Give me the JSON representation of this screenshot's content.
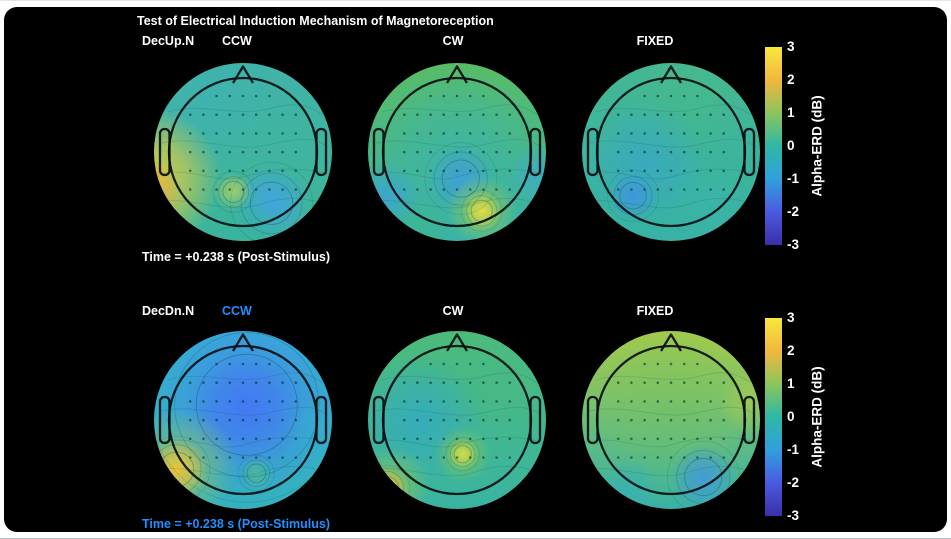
{
  "figure": {
    "title": "Test of Electrical Induction Mechanism of Magnetoreception",
    "colorbar": {
      "label": "Alpha-ERD (dB)",
      "min": -3,
      "max": 3,
      "ticks": [
        "3",
        "2",
        "1",
        "0",
        "-1",
        "-2",
        "-3"
      ],
      "gradient": [
        "#f9e73e",
        "#f2b73d",
        "#8cc45c",
        "#2eb8a6",
        "#31a0dc",
        "#4a5be0",
        "#3b2fa6"
      ]
    },
    "accent_blue": "#1e90ff",
    "rows": [
      {
        "row_label": "DecUp.N",
        "row_label_color": "#ffffff",
        "time_label": "Time = +0.238 s (Post-Stimulus)",
        "time_color": "#ffffff",
        "panels": [
          {
            "condition": "CCW",
            "condition_color": "#ffffff",
            "field": {
              "base_top": "#41b3a8",
              "base_bottom": "#3eb598",
              "blobs": [
                {
                  "x": 30,
                  "y": 22,
                  "r": 30,
                  "c": "#3db2b6",
                  "o": 0.55
                },
                {
                  "x": 1,
                  "y": 64,
                  "r": 30,
                  "c": "#e9cf3b",
                  "o": 0.95
                },
                {
                  "x": -3,
                  "y": 72,
                  "r": 16,
                  "c": "#eda43c",
                  "o": 0.9
                },
                {
                  "x": 65,
                  "y": 77,
                  "r": 16,
                  "c": "#41a2ea",
                  "o": 0.9,
                  "ring": 1
                },
                {
                  "x": 45,
                  "y": 71,
                  "r": 8,
                  "c": "#b9d45e",
                  "o": 0.85,
                  "ring": 1
                },
                {
                  "x": 50,
                  "y": 95,
                  "r": 22,
                  "c": "#35b2a2",
                  "o": 0.6
                }
              ]
            }
          },
          {
            "condition": "CW",
            "condition_color": "#ffffff",
            "field": {
              "base_top": "#5abd62",
              "base_bottom": "#37b2ae",
              "blobs": [
                {
                  "x": 50,
                  "y": 47,
                  "r": 36,
                  "c": "#36b2be",
                  "o": 0.5
                },
                {
                  "x": 52,
                  "y": 64,
                  "r": 14,
                  "c": "#3f9be0",
                  "o": 0.8,
                  "ring": 1
                },
                {
                  "x": 63,
                  "y": 81,
                  "r": 15,
                  "c": "#8fca58",
                  "o": 0.85
                },
                {
                  "x": 63,
                  "y": 81,
                  "r": 8,
                  "c": "#e3dc46",
                  "o": 0.95,
                  "ring": 1
                },
                {
                  "x": 12,
                  "y": 74,
                  "r": 15,
                  "c": "#3aa2d8",
                  "o": 0.8
                },
                {
                  "x": 93,
                  "y": 62,
                  "r": 13,
                  "c": "#3da6de",
                  "o": 0.6
                },
                {
                  "x": 30,
                  "y": 97,
                  "r": 20,
                  "c": "#42b87e",
                  "o": 0.5
                }
              ]
            }
          },
          {
            "condition": "FIXED",
            "condition_color": "#ffffff",
            "field": {
              "base_top": "#43b794",
              "base_bottom": "#37b2a4",
              "blobs": [
                {
                  "x": 60,
                  "y": 18,
                  "r": 28,
                  "c": "#49ba86",
                  "o": 0.55
                },
                {
                  "x": 36,
                  "y": 56,
                  "r": 26,
                  "c": "#38a6ca",
                  "o": 0.7
                },
                {
                  "x": 30,
                  "y": 73,
                  "r": 10,
                  "c": "#3f92e2",
                  "o": 0.85,
                  "ring": 1
                },
                {
                  "x": 70,
                  "y": 80,
                  "r": 16,
                  "c": "#3cb4ac",
                  "o": 0.6
                },
                {
                  "x": 5,
                  "y": 35,
                  "r": 16,
                  "c": "#40b69e",
                  "o": 0.5
                }
              ]
            }
          }
        ]
      },
      {
        "row_label": "DecDn.N",
        "row_label_color": "#ffffff",
        "time_label": "Time = +0.238 s (Post-Stimulus)",
        "time_color": "#1e90ff",
        "panels": [
          {
            "condition": "CCW",
            "condition_color": "#1e90ff",
            "field": {
              "base_top": "#36aed4",
              "base_bottom": "#34b0be",
              "blobs": [
                {
                  "x": 52,
                  "y": 42,
                  "r": 38,
                  "c": "#4481ee",
                  "o": 0.85,
                  "ring": 1
                },
                {
                  "x": 52,
                  "y": 44,
                  "r": 24,
                  "c": "#4377f4",
                  "o": 0.8
                },
                {
                  "x": 17,
                  "y": 74,
                  "r": 24,
                  "c": "#a8ca4c",
                  "o": 0.6
                },
                {
                  "x": 15,
                  "y": 76,
                  "r": 13,
                  "c": "#f3c436",
                  "o": 0.95,
                  "ring": 1
                },
                {
                  "x": 57,
                  "y": 78,
                  "r": 7,
                  "c": "#4fbc8e",
                  "o": 0.8,
                  "ring": 1
                },
                {
                  "x": 90,
                  "y": 55,
                  "r": 14,
                  "c": "#32aed0",
                  "o": 0.5
                }
              ]
            }
          },
          {
            "condition": "CW",
            "condition_color": "#ffffff",
            "field": {
              "base_top": "#4cbb7a",
              "base_bottom": "#3ab4a2",
              "blobs": [
                {
                  "x": 30,
                  "y": 50,
                  "r": 28,
                  "c": "#31a9c8",
                  "o": 0.75
                },
                {
                  "x": 53,
                  "y": 68,
                  "r": 12,
                  "c": "#7ec45e",
                  "o": 0.85
                },
                {
                  "x": 53,
                  "y": 68,
                  "r": 6.5,
                  "c": "#d5dc4a",
                  "o": 0.95,
                  "ring": 1
                },
                {
                  "x": 16,
                  "y": 84,
                  "r": 16,
                  "c": "#92c854",
                  "o": 0.7
                },
                {
                  "x": 13,
                  "y": 86,
                  "r": 9,
                  "c": "#eebb38",
                  "o": 0.95,
                  "ring": 1
                },
                {
                  "x": 75,
                  "y": 30,
                  "r": 22,
                  "c": "#4ab884",
                  "o": 0.5
                }
              ]
            }
          },
          {
            "condition": "FIXED",
            "condition_color": "#ffffff",
            "field": {
              "base_top": "#a8cb49",
              "base_bottom": "#32b0ac",
              "blobs": [
                {
                  "x": 50,
                  "y": 28,
                  "r": 40,
                  "c": "#93c751",
                  "o": 0.6
                },
                {
                  "x": 50,
                  "y": 55,
                  "r": 40,
                  "c": "#5fbe74",
                  "o": 0.5
                },
                {
                  "x": 67,
                  "y": 80,
                  "r": 14,
                  "c": "#3f97de",
                  "o": 0.85,
                  "ring": 1
                },
                {
                  "x": 28,
                  "y": 86,
                  "r": 13,
                  "c": "#36b0b6",
                  "o": 0.7
                },
                {
                  "x": 92,
                  "y": 40,
                  "r": 14,
                  "c": "#b1cd47",
                  "o": 0.6
                }
              ]
            }
          }
        ]
      }
    ]
  },
  "chart_data": {
    "type": "heatmap",
    "figure_kind": "EEG scalp topography grid (2 rows x 3 columns)",
    "title": "Test of Electrical Induction Mechanism of Magnetoreception",
    "colorbar": {
      "label": "Alpha-ERD (dB)",
      "min": -3,
      "max": 3,
      "ticks": [
        3,
        2,
        1,
        0,
        -1,
        -2,
        -3
      ],
      "colormap": "parula"
    },
    "highlighted_condition": {
      "row": "DecDn.N",
      "stimulus": "CCW",
      "highlight_color": "#1e90ff"
    },
    "rows": [
      {
        "condition_set": "DecUp.N",
        "time": "+0.238 s (Post-Stimulus)",
        "panels": [
          {
            "stimulus": "CCW",
            "pattern": "near-zero teal field; ~+2 dB yellow-orange focus at far-left temporal edge; ~-1 dB blue focus right-parietal; small ~+1 dB green spot central-parietal"
          },
          {
            "stimulus": "CW",
            "pattern": "~+1 dB green frontal field; ~-1 dB blue central-parietal spot; ~+1.5 dB yellow-green focus right-occipital; ~-1 dB blue left-occipital edge"
          },
          {
            "stimulus": "FIXED",
            "pattern": "near-zero teal field; ~-0.5 dB cyan centro-parietal patch with ~-1 dB blue spot left-parietal"
          }
        ]
      },
      {
        "condition_set": "DecDn.N",
        "time": "+0.238 s (Post-Stimulus)",
        "panels": [
          {
            "stimulus": "CCW",
            "pattern": "broad ~-1 to -1.5 dB blue region over central/parietal scalp; ~+2.5 dB yellow-orange focus left-occipital edge; small ~0 dB teal spot mid-occipital"
          },
          {
            "stimulus": "CW",
            "pattern": "near-zero teal-green field; ~-0.5 dB cyan centro-parietal patch; ~+1.5 dB yellow-green spot right-parietal; ~+2 dB orange focus left-occipital edge"
          },
          {
            "stimulus": "FIXED",
            "pattern": "~+1 to +1.5 dB green-yellow frontal field grading to ~0 dB teal posterior; ~-1 dB blue patch right-occipital"
          }
        ]
      }
    ]
  }
}
